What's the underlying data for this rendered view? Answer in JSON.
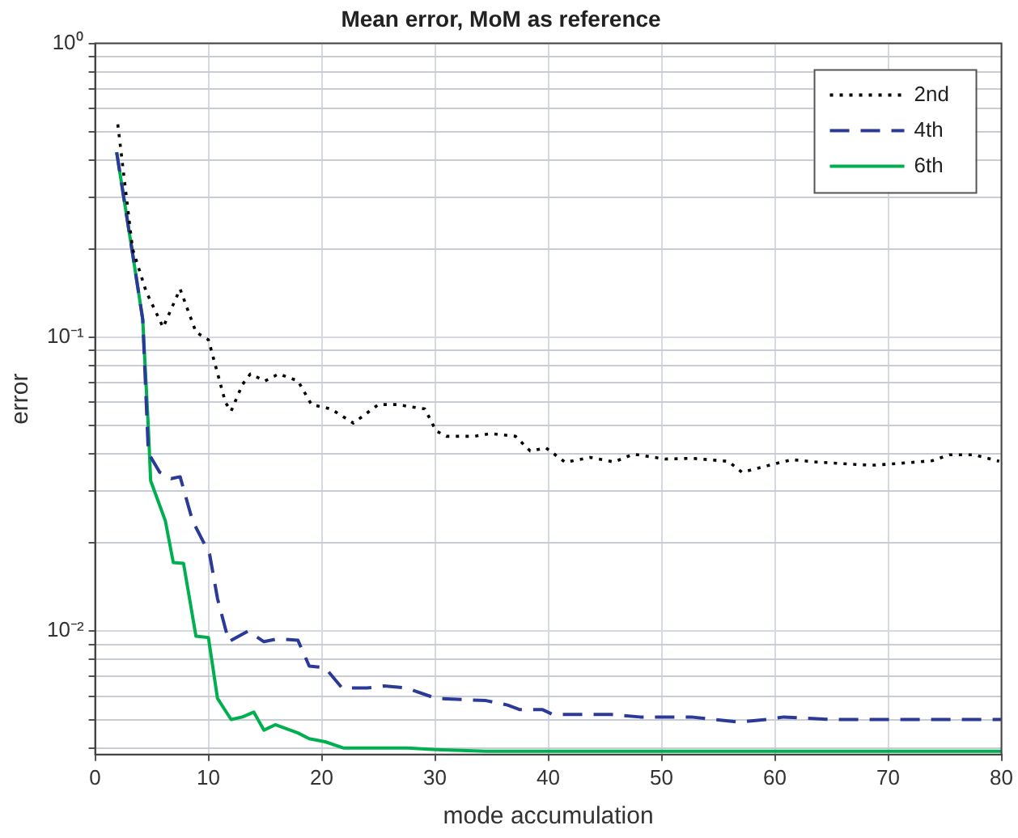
{
  "chart_data": {
    "type": "line",
    "title": "Mean error, MoM as reference",
    "xlabel": "mode accumulation",
    "ylabel": "error",
    "xlim": [
      0,
      80
    ],
    "xticks": [
      0,
      10,
      20,
      30,
      40,
      50,
      60,
      70,
      80
    ],
    "ylim": [
      0.0038,
      1
    ],
    "log": true,
    "yticks": [
      {
        "value": 0.004,
        "label": null
      },
      {
        "value": 0.005,
        "label": null
      },
      {
        "value": 0.006,
        "label": null
      },
      {
        "value": 0.007,
        "label": null
      },
      {
        "value": 0.008,
        "label": null
      },
      {
        "value": 0.009,
        "label": null
      },
      {
        "value": 0.01,
        "label": "10⁻²"
      },
      {
        "value": 0.02,
        "label": null
      },
      {
        "value": 0.03,
        "label": null
      },
      {
        "value": 0.04,
        "label": null
      },
      {
        "value": 0.05,
        "label": null
      },
      {
        "value": 0.06,
        "label": null
      },
      {
        "value": 0.07,
        "label": null
      },
      {
        "value": 0.08,
        "label": null
      },
      {
        "value": 0.09,
        "label": null
      },
      {
        "value": 0.1,
        "label": "10⁻¹"
      },
      {
        "value": 0.2,
        "label": null
      },
      {
        "value": 0.3,
        "label": null
      },
      {
        "value": 0.4,
        "label": null
      },
      {
        "value": 0.5,
        "label": null
      },
      {
        "value": 0.6,
        "label": null
      },
      {
        "value": 0.7,
        "label": null
      },
      {
        "value": 0.8,
        "label": null
      },
      {
        "value": 0.9,
        "label": null
      },
      {
        "value": 1,
        "label": "10⁰"
      }
    ],
    "grid": true,
    "legend": "top right",
    "marker": "none",
    "series": [
      {
        "name": "2nd",
        "color": "#000000",
        "line_style": "dotted",
        "x": [
          2,
          3.3,
          4.5,
          6,
          7.5,
          8.9,
          10,
          11.5,
          12,
          13,
          13.7,
          15,
          16.2,
          17.9,
          19.1,
          20.8,
          22.8,
          25,
          26.6,
          29.1,
          30.1,
          31,
          33.5,
          34.9,
          37.1,
          38.4,
          39.8,
          41.5,
          43.7,
          45.8,
          47.5,
          50.3,
          52.7,
          55.9,
          57.1,
          59.3,
          61.5,
          63.7,
          67.6,
          68.9,
          72.5,
          73.9,
          75.4,
          77.6,
          79.8
        ],
        "values": [
          0.53,
          0.2,
          0.143,
          0.108,
          0.146,
          0.104,
          0.098,
          0.06,
          0.056,
          0.069,
          0.075,
          0.071,
          0.075,
          0.071,
          0.059,
          0.057,
          0.051,
          0.059,
          0.059,
          0.057,
          0.048,
          0.046,
          0.046,
          0.047,
          0.046,
          0.041,
          0.042,
          0.0375,
          0.039,
          0.0376,
          0.04,
          0.0385,
          0.0387,
          0.0378,
          0.0347,
          0.0365,
          0.0383,
          0.0376,
          0.0368,
          0.0367,
          0.0376,
          0.038,
          0.0398,
          0.0398,
          0.0378
        ]
      },
      {
        "name": "4th",
        "color": "#2b3a99",
        "line_style": "dashed",
        "x": [
          1.9,
          3.3,
          4.2,
          4.7,
          5.7,
          6.7,
          7.5,
          8.6,
          10.1,
          10.8,
          11.8,
          13.5,
          14.9,
          16.1,
          17.9,
          18.9,
          20.3,
          21.8,
          24,
          25.5,
          27.5,
          30.1,
          34.5,
          36.4,
          37.5,
          39.5,
          40.4,
          45.6,
          48.1,
          52.6,
          56.9,
          59.3,
          60.8,
          65,
          70,
          75,
          80
        ],
        "values": [
          0.426,
          0.193,
          0.115,
          0.0403,
          0.0347,
          0.033,
          0.0335,
          0.0237,
          0.0183,
          0.0129,
          0.0092,
          0.01,
          0.0092,
          0.0094,
          0.0093,
          0.0076,
          0.0075,
          0.0064,
          0.0064,
          0.0065,
          0.0064,
          0.0059,
          0.0058,
          0.0056,
          0.0054,
          0.0054,
          0.0052,
          0.0052,
          0.0051,
          0.0051,
          0.0049,
          0.005,
          0.0051,
          0.005,
          0.005,
          0.005,
          0.005
        ]
      },
      {
        "name": "6th",
        "color": "#00b050",
        "line_style": "solid",
        "x": [
          1.9,
          3.3,
          4.2,
          4.7,
          4.9,
          6.2,
          6.9,
          7.8,
          8.9,
          10,
          10.8,
          12,
          13,
          14,
          14.9,
          15.9,
          17.9,
          18.9,
          20.3,
          21.9,
          27.5,
          30.1,
          34.5,
          40,
          50,
          60,
          70,
          80
        ],
        "values": [
          0.426,
          0.193,
          0.115,
          0.0488,
          0.0325,
          0.0237,
          0.0171,
          0.017,
          0.0096,
          0.0095,
          0.0059,
          0.005,
          0.0051,
          0.0053,
          0.0046,
          0.0048,
          0.0045,
          0.0043,
          0.0042,
          0.004,
          0.004,
          0.00395,
          0.0039,
          0.0039,
          0.0039,
          0.0039,
          0.0039,
          0.0039
        ]
      }
    ]
  }
}
